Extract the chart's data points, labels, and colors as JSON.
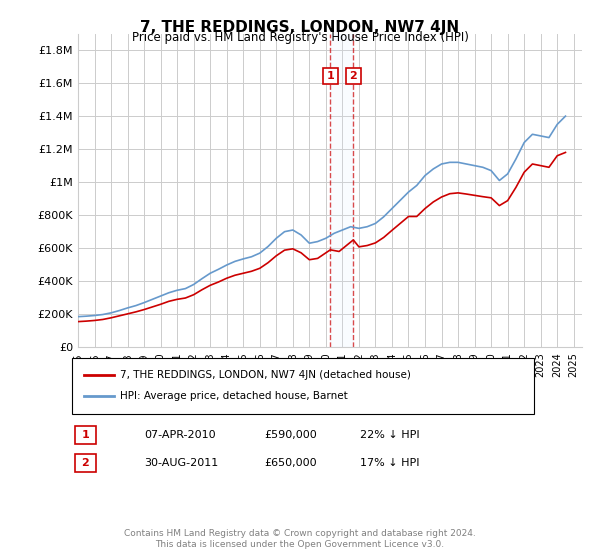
{
  "title": "7, THE REDDINGS, LONDON, NW7 4JN",
  "subtitle": "Price paid vs. HM Land Registry's House Price Index (HPI)",
  "legend_line1": "7, THE REDDINGS, LONDON, NW7 4JN (detached house)",
  "legend_line2": "HPI: Average price, detached house, Barnet",
  "annotation1_label": "1",
  "annotation1_date": "07-APR-2010",
  "annotation1_price": "£590,000",
  "annotation1_hpi": "22% ↓ HPI",
  "annotation2_label": "2",
  "annotation2_date": "30-AUG-2011",
  "annotation2_price": "£650,000",
  "annotation2_hpi": "17% ↓ HPI",
  "footer": "Contains HM Land Registry data © Crown copyright and database right 2024.\nThis data is licensed under the Open Government Licence v3.0.",
  "red_color": "#cc0000",
  "blue_color": "#6699cc",
  "grid_color": "#cccccc",
  "annotation_box_color": "#cc0000",
  "annotation_fill_color": "#ddeeff",
  "ylim": [
    0,
    1900000
  ],
  "yticks": [
    0,
    200000,
    400000,
    600000,
    800000,
    1000000,
    1200000,
    1400000,
    1600000,
    1800000
  ],
  "ytick_labels": [
    "£0",
    "£200K",
    "£400K",
    "£600K",
    "£800K",
    "£1M",
    "£1.2M",
    "£1.4M",
    "£1.6M",
    "£1.8M"
  ],
  "xlim_start": 1995.0,
  "xlim_end": 2025.5,
  "xtick_years": [
    1995,
    1996,
    1997,
    1998,
    1999,
    2000,
    2001,
    2002,
    2003,
    2004,
    2005,
    2006,
    2007,
    2008,
    2009,
    2010,
    2011,
    2012,
    2013,
    2014,
    2015,
    2016,
    2017,
    2018,
    2019,
    2020,
    2021,
    2022,
    2023,
    2024,
    2025
  ],
  "point1_x": 2010.27,
  "point1_y": 590000,
  "point2_x": 2011.66,
  "point2_y": 650000,
  "hpi_x": [
    1995.0,
    1995.5,
    1996.0,
    1996.5,
    1997.0,
    1997.5,
    1998.0,
    1998.5,
    1999.0,
    1999.5,
    2000.0,
    2000.5,
    2001.0,
    2001.5,
    2002.0,
    2002.5,
    2003.0,
    2003.5,
    2004.0,
    2004.5,
    2005.0,
    2005.5,
    2006.0,
    2006.5,
    2007.0,
    2007.5,
    2008.0,
    2008.5,
    2009.0,
    2009.5,
    2010.0,
    2010.5,
    2011.0,
    2011.5,
    2012.0,
    2012.5,
    2013.0,
    2013.5,
    2014.0,
    2014.5,
    2015.0,
    2015.5,
    2016.0,
    2016.5,
    2017.0,
    2017.5,
    2018.0,
    2018.5,
    2019.0,
    2019.5,
    2020.0,
    2020.5,
    2021.0,
    2021.5,
    2022.0,
    2022.5,
    2023.0,
    2023.5,
    2024.0,
    2024.5
  ],
  "hpi_y": [
    185000,
    188000,
    192000,
    198000,
    208000,
    222000,
    238000,
    252000,
    270000,
    290000,
    310000,
    330000,
    345000,
    355000,
    380000,
    415000,
    448000,
    472000,
    498000,
    520000,
    535000,
    548000,
    570000,
    610000,
    660000,
    700000,
    710000,
    680000,
    630000,
    640000,
    660000,
    690000,
    710000,
    730000,
    720000,
    730000,
    750000,
    790000,
    840000,
    890000,
    940000,
    980000,
    1040000,
    1080000,
    1110000,
    1120000,
    1120000,
    1110000,
    1100000,
    1090000,
    1070000,
    1010000,
    1050000,
    1140000,
    1240000,
    1290000,
    1280000,
    1270000,
    1350000,
    1400000
  ],
  "red_x": [
    1995.0,
    1995.5,
    1996.0,
    1996.5,
    1997.0,
    1997.5,
    1998.0,
    1998.5,
    1999.0,
    1999.5,
    2000.0,
    2000.5,
    2001.0,
    2001.5,
    2002.0,
    2002.5,
    2003.0,
    2003.5,
    2004.0,
    2004.5,
    2005.0,
    2005.5,
    2006.0,
    2006.5,
    2007.0,
    2007.5,
    2008.0,
    2008.5,
    2009.0,
    2009.5,
    2010.27,
    2010.8,
    2011.66,
    2012.0,
    2012.5,
    2013.0,
    2013.5,
    2014.0,
    2014.5,
    2015.0,
    2015.5,
    2016.0,
    2016.5,
    2017.0,
    2017.5,
    2018.0,
    2018.5,
    2019.0,
    2019.5,
    2020.0,
    2020.5,
    2021.0,
    2021.5,
    2022.0,
    2022.5,
    2023.0,
    2023.5,
    2024.0,
    2024.5
  ],
  "red_y": [
    155000,
    158000,
    162000,
    168000,
    178000,
    190000,
    202000,
    214000,
    228000,
    244000,
    260000,
    278000,
    290000,
    298000,
    318000,
    348000,
    375000,
    395000,
    418000,
    436000,
    448000,
    460000,
    478000,
    512000,
    554000,
    588000,
    596000,
    572000,
    530000,
    538000,
    590000,
    580000,
    650000,
    608000,
    616000,
    632000,
    665000,
    708000,
    750000,
    792000,
    792000,
    840000,
    880000,
    910000,
    930000,
    935000,
    928000,
    920000,
    912000,
    905000,
    858000,
    888000,
    968000,
    1060000,
    1110000,
    1100000,
    1090000,
    1160000,
    1180000
  ]
}
